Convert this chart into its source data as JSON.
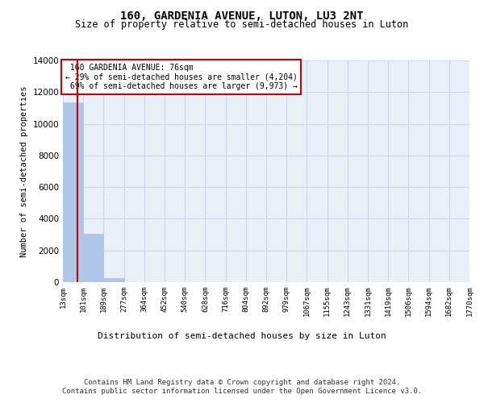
{
  "title1": "160, GARDENIA AVENUE, LUTON, LU3 2NT",
  "title2": "Size of property relative to semi-detached houses in Luton",
  "xlabel": "Distribution of semi-detached houses by size in Luton",
  "ylabel": "Number of semi-detached properties",
  "footer1": "Contains HM Land Registry data © Crown copyright and database right 2024.",
  "footer2": "Contains public sector information licensed under the Open Government Licence v3.0.",
  "bin_labels": [
    "13sqm",
    "101sqm",
    "189sqm",
    "277sqm",
    "364sqm",
    "452sqm",
    "540sqm",
    "628sqm",
    "716sqm",
    "804sqm",
    "892sqm",
    "979sqm",
    "1067sqm",
    "1155sqm",
    "1243sqm",
    "1331sqm",
    "1419sqm",
    "1506sqm",
    "1594sqm",
    "1682sqm",
    "1770sqm"
  ],
  "bin_edges": [
    13,
    101,
    189,
    277,
    364,
    452,
    540,
    628,
    716,
    804,
    892,
    979,
    1067,
    1155,
    1243,
    1331,
    1419,
    1506,
    1594,
    1682,
    1770
  ],
  "bar_heights": [
    11350,
    3050,
    230,
    0,
    0,
    0,
    0,
    0,
    0,
    0,
    0,
    0,
    0,
    0,
    0,
    0,
    0,
    0,
    0,
    0
  ],
  "bar_color": "#aec6e8",
  "bar_edgecolor": "#aec6e8",
  "grid_color": "#c8d8e8",
  "background_color": "#e8f0f8",
  "ylim": [
    0,
    14000
  ],
  "yticks": [
    0,
    2000,
    4000,
    6000,
    8000,
    10000,
    12000,
    14000
  ],
  "property_size": 76,
  "property_label": "160 GARDENIA AVENUE: 76sqm",
  "smaller_pct": 29,
  "smaller_count": 4204,
  "larger_pct": 69,
  "larger_count": 9973,
  "vline_color": "#cc0000",
  "annotation_box_edgecolor": "#cc0000",
  "annotation_box_facecolor": "#ffffff"
}
